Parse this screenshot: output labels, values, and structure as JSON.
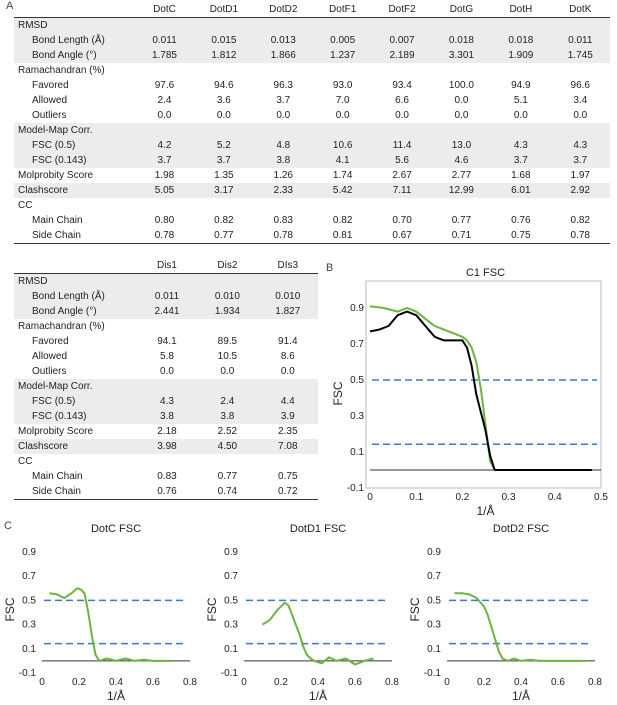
{
  "panel_labels": {
    "a": "A",
    "b": "B",
    "c": "C"
  },
  "table_a": {
    "columns": [
      "DotC",
      "DotD1",
      "DotD2",
      "DotF1",
      "DotF2",
      "DotG",
      "DotH",
      "DotK"
    ],
    "rows": [
      {
        "label": "RMSD",
        "section": true,
        "shade": true,
        "values": []
      },
      {
        "label": "Bond Length (Å)",
        "shade": true,
        "values": [
          "0.011",
          "0.015",
          "0.013",
          "0.005",
          "0.007",
          "0.018",
          "0.018",
          "0.011"
        ]
      },
      {
        "label": "Bond Angle (°)",
        "shade": true,
        "values": [
          "1.785",
          "1.812",
          "1.866",
          "1.237",
          "2.189",
          "3.301",
          "1.909",
          "1.745"
        ]
      },
      {
        "label": "Ramachandran (%)",
        "section": true,
        "shade": false,
        "values": []
      },
      {
        "label": "Favored",
        "shade": false,
        "values": [
          "97.6",
          "94.6",
          "96.3",
          "93.0",
          "93.4",
          "100.0",
          "94.9",
          "96.6"
        ]
      },
      {
        "label": "Allowed",
        "shade": false,
        "values": [
          "2.4",
          "3.6",
          "3.7",
          "7.0",
          "6.6",
          "0.0",
          "5.1",
          "3.4"
        ]
      },
      {
        "label": "Outliers",
        "shade": false,
        "values": [
          "0.0",
          "0.0",
          "0.0",
          "0.0",
          "0.0",
          "0.0",
          "0.0",
          "0.0"
        ]
      },
      {
        "label": "Model-Map Corr.",
        "section": true,
        "shade": true,
        "values": []
      },
      {
        "label": "FSC (0.5)",
        "shade": true,
        "values": [
          "4.2",
          "5.2",
          "4.8",
          "10.6",
          "11.4",
          "13.0",
          "4.3",
          "4.3"
        ]
      },
      {
        "label": "FSC (0.143)",
        "shade": true,
        "values": [
          "3.7",
          "3.7",
          "3.8",
          "4.1",
          "5.6",
          "4.6",
          "3.7",
          "3.7"
        ]
      },
      {
        "label": "Molprobity Score",
        "section": true,
        "shade": false,
        "values": [
          "1.98",
          "1.35",
          "1.26",
          "1.74",
          "2.67",
          "2.77",
          "1.68",
          "1.97"
        ]
      },
      {
        "label": "Clashscore",
        "section": true,
        "shade": true,
        "values": [
          "5.05",
          "3.17",
          "2.33",
          "5.42",
          "7.11",
          "12.99",
          "6.01",
          "2.92"
        ]
      },
      {
        "label": "CC",
        "section": true,
        "shade": false,
        "values": []
      },
      {
        "label": "Main Chain",
        "shade": false,
        "values": [
          "0.80",
          "0.82",
          "0.83",
          "0.82",
          "0.70",
          "0.77",
          "0.76",
          "0.82"
        ]
      },
      {
        "label": "Side Chain",
        "shade": false,
        "values": [
          "0.78",
          "0.77",
          "0.78",
          "0.81",
          "0.67",
          "0.71",
          "0.75",
          "0.78"
        ]
      }
    ]
  },
  "table_b": {
    "columns": [
      "Dis1",
      "Dis2",
      "DIs3"
    ],
    "rows": [
      {
        "label": "RMSD",
        "section": true,
        "shade": true,
        "values": []
      },
      {
        "label": "Bond Length (Å)",
        "shade": true,
        "values": [
          "0.011",
          "0.010",
          "0.010"
        ]
      },
      {
        "label": "Bond Angle (°)",
        "shade": true,
        "values": [
          "2.441",
          "1.934",
          "1.827"
        ]
      },
      {
        "label": "Ramachandran (%)",
        "section": true,
        "shade": false,
        "values": []
      },
      {
        "label": "Favored",
        "shade": false,
        "values": [
          "94.1",
          "89.5",
          "91.4"
        ]
      },
      {
        "label": "Allowed",
        "shade": false,
        "values": [
          "5.8",
          "10.5",
          "8.6"
        ]
      },
      {
        "label": "Outliers",
        "shade": false,
        "values": [
          "0.0",
          "0.0",
          "0.0"
        ]
      },
      {
        "label": "Model-Map Corr.",
        "section": true,
        "shade": true,
        "values": []
      },
      {
        "label": "FSC (0.5)",
        "shade": true,
        "values": [
          "4.3",
          "2.4",
          "4.4"
        ]
      },
      {
        "label": "FSC (0.143)",
        "shade": true,
        "values": [
          "3.8",
          "3.8",
          "3.9"
        ]
      },
      {
        "label": "Molprobity Score",
        "section": true,
        "shade": false,
        "values": [
          "2.18",
          "2.52",
          "2.35"
        ]
      },
      {
        "label": "Clashscore",
        "section": true,
        "shade": true,
        "values": [
          "3.98",
          "4.50",
          "7.08"
        ]
      },
      {
        "label": "CC",
        "section": true,
        "shade": false,
        "values": []
      },
      {
        "label": "Main Chain",
        "shade": false,
        "values": [
          "0.83",
          "0.77",
          "0.75"
        ]
      },
      {
        "label": "Side Chain",
        "shade": false,
        "values": [
          "0.76",
          "0.74",
          "0.72"
        ]
      }
    ]
  },
  "colors": {
    "green": "#6db33f",
    "black": "#000000",
    "dashed": "#3a78c9",
    "shade": "#ececec"
  },
  "chart_data": [
    {
      "type": "line",
      "title": "C1 FSC",
      "xlabel": "1/Å",
      "ylabel": "FSC",
      "xlim": [
        0,
        0.5
      ],
      "ylim": [
        -0.1,
        0.95
      ],
      "xticks": [
        "0",
        "0.1",
        "0.2",
        "0.3",
        "0.4",
        "0.5"
      ],
      "yticks": [
        "-0.1",
        "0.1",
        "0.3",
        "0.5",
        "0.7",
        "0.9"
      ],
      "thresholds": [
        0.5,
        0.143
      ],
      "series": [
        {
          "color": "#6db33f",
          "x": [
            0,
            0.03,
            0.06,
            0.08,
            0.1,
            0.12,
            0.14,
            0.16,
            0.18,
            0.2,
            0.21,
            0.22,
            0.23,
            0.24,
            0.25,
            0.26,
            0.27,
            0.3,
            0.4,
            0.48
          ],
          "y": [
            0.91,
            0.9,
            0.88,
            0.9,
            0.88,
            0.84,
            0.8,
            0.78,
            0.76,
            0.74,
            0.72,
            0.68,
            0.6,
            0.45,
            0.25,
            0.05,
            0.0,
            0.0,
            0.0,
            0.0
          ]
        },
        {
          "color": "#000000",
          "x": [
            0,
            0.02,
            0.04,
            0.06,
            0.08,
            0.1,
            0.12,
            0.14,
            0.16,
            0.18,
            0.2,
            0.21,
            0.22,
            0.23,
            0.24,
            0.25,
            0.26,
            0.27,
            0.3,
            0.4,
            0.48
          ],
          "y": [
            0.77,
            0.78,
            0.8,
            0.86,
            0.88,
            0.86,
            0.8,
            0.74,
            0.72,
            0.72,
            0.72,
            0.68,
            0.58,
            0.42,
            0.32,
            0.22,
            0.08,
            0.0,
            0.0,
            0.0,
            0.0
          ]
        }
      ]
    },
    {
      "type": "line",
      "title": "DotC FSC",
      "xlabel": "1/Å",
      "ylabel": "FSC",
      "xlim": [
        0,
        0.8
      ],
      "ylim": [
        -0.1,
        0.95
      ],
      "xticks": [
        "0",
        "0.2",
        "0.4",
        "0.6",
        "0.8"
      ],
      "yticks": [
        "-0.1",
        "0.1",
        "0.3",
        "0.5",
        "0.7",
        "0.9"
      ],
      "thresholds": [
        0.5,
        0.143
      ],
      "series": [
        {
          "color": "#6db33f",
          "x": [
            0.04,
            0.08,
            0.12,
            0.16,
            0.19,
            0.21,
            0.23,
            0.25,
            0.27,
            0.29,
            0.31,
            0.35,
            0.4,
            0.45,
            0.5,
            0.55,
            0.6,
            0.65,
            0.7
          ],
          "y": [
            0.56,
            0.55,
            0.52,
            0.56,
            0.6,
            0.59,
            0.56,
            0.4,
            0.2,
            0.05,
            0.0,
            0.02,
            0.0,
            0.02,
            0.0,
            0.01,
            0.0,
            0.0,
            0.0
          ]
        }
      ]
    },
    {
      "type": "line",
      "title": "DotD1 FSC",
      "xlabel": "1/Å",
      "ylabel": "FSC",
      "xlim": [
        0,
        0.8
      ],
      "ylim": [
        -0.1,
        0.95
      ],
      "xticks": [
        "0",
        "0.2",
        "0.4",
        "0.6",
        "0.8"
      ],
      "yticks": [
        "-0.1",
        "0.1",
        "0.3",
        "0.5",
        "0.7",
        "0.9"
      ],
      "thresholds": [
        0.5,
        0.143
      ],
      "series": [
        {
          "color": "#6db33f",
          "x": [
            0.1,
            0.14,
            0.18,
            0.22,
            0.24,
            0.26,
            0.28,
            0.3,
            0.32,
            0.34,
            0.36,
            0.38,
            0.42,
            0.46,
            0.5,
            0.55,
            0.6,
            0.65,
            0.7
          ],
          "y": [
            0.3,
            0.34,
            0.42,
            0.48,
            0.46,
            0.38,
            0.3,
            0.22,
            0.12,
            0.05,
            0.02,
            0.0,
            -0.02,
            0.03,
            0.0,
            0.02,
            -0.03,
            0.0,
            0.02
          ]
        }
      ]
    },
    {
      "type": "line",
      "title": "DotD2 FSC",
      "xlabel": "1/Å",
      "ylabel": "FSC",
      "xlim": [
        0,
        0.8
      ],
      "ylim": [
        -0.1,
        0.95
      ],
      "xticks": [
        "0",
        "0.2",
        "0.4",
        "0.6",
        "0.8"
      ],
      "yticks": [
        "-0.1",
        "0.1",
        "0.3",
        "0.5",
        "0.7",
        "0.9"
      ],
      "thresholds": [
        0.5,
        0.143
      ],
      "series": [
        {
          "color": "#6db33f",
          "x": [
            0.04,
            0.08,
            0.12,
            0.16,
            0.2,
            0.22,
            0.24,
            0.26,
            0.28,
            0.3,
            0.33,
            0.36,
            0.4,
            0.45,
            0.5,
            0.55,
            0.6,
            0.65,
            0.7,
            0.75
          ],
          "y": [
            0.56,
            0.56,
            0.55,
            0.52,
            0.45,
            0.38,
            0.28,
            0.18,
            0.08,
            0.02,
            0.0,
            0.02,
            0.0,
            0.01,
            0.0,
            0.0,
            0.0,
            0.0,
            0.0,
            0.0
          ]
        }
      ]
    }
  ]
}
